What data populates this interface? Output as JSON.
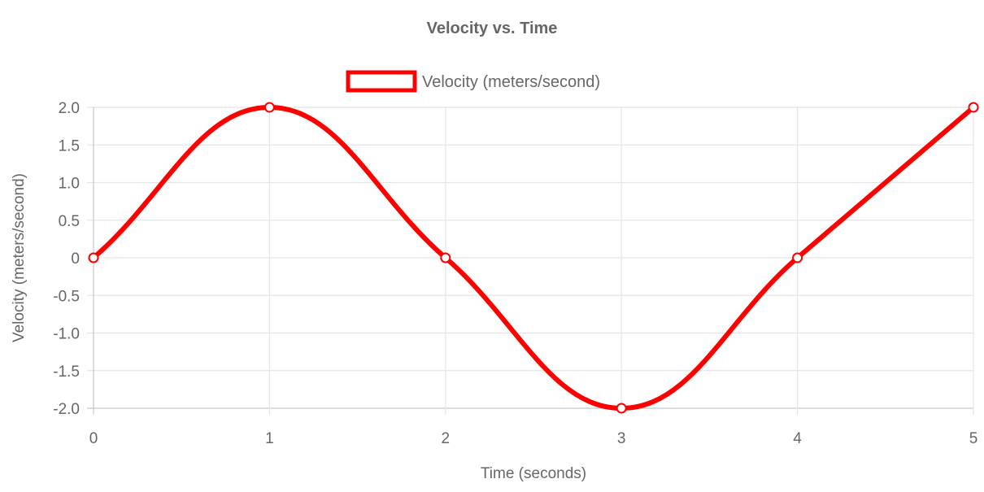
{
  "chart_data": {
    "type": "line",
    "title": "Velocity vs. Time",
    "xlabel": "Time (seconds)",
    "ylabel": "Velocity (meters/second)",
    "x": [
      0,
      1,
      2,
      3,
      4,
      5
    ],
    "x_tick_labels": [
      "0",
      "1",
      "2",
      "3",
      "4",
      "5"
    ],
    "y_tick_labels": [
      "2.0",
      "1.5",
      "1.0",
      "0.5",
      "0",
      "-0.5",
      "-1.0",
      "-1.5",
      "-2.0"
    ],
    "y_ticks": [
      2.0,
      1.5,
      1.0,
      0.5,
      0,
      -0.5,
      -1.0,
      -1.5,
      -2.0
    ],
    "xlim": [
      0,
      5
    ],
    "ylim": [
      -2.0,
      2.0
    ],
    "grid": true,
    "legend_position": "top",
    "series": [
      {
        "name": "Velocity (meters/second)",
        "values": [
          0,
          2,
          0,
          -2,
          0,
          2
        ],
        "color": "#ff0000"
      }
    ]
  }
}
